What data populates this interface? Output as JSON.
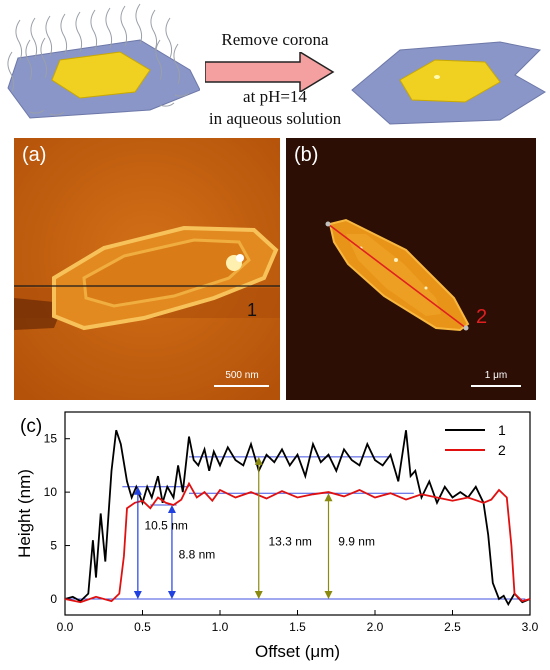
{
  "schematic": {
    "line1": "Remove corona",
    "line2": "at pH=14",
    "line3": "in aqueous solution"
  },
  "panel_a": {
    "label": "(a)",
    "line_label": "1",
    "scale_bar": "500 nm",
    "colors": {
      "background": "#c96a10",
      "flake": "#f2b030",
      "line": "#1a1a1a"
    }
  },
  "panel_b": {
    "label": "(b)",
    "line_label": "2",
    "scale_bar": "1 μm",
    "colors": {
      "background": "#2a0c04",
      "flake": "#f0a020",
      "line": "#e02020"
    }
  },
  "panel_c": {
    "label": "(c)",
    "annotations": [
      "10.5 nm",
      "8.8 nm",
      "13.3 nm",
      "9.9 nm"
    ]
  },
  "chart_data": {
    "type": "line",
    "xlabel": "Offset (μm)",
    "ylabel": "Height (nm)",
    "xlim": [
      0.0,
      3.0
    ],
    "ylim": [
      -1.5,
      17.5
    ],
    "xticks": [
      "0.0",
      "0.5",
      "1.0",
      "1.5",
      "2.0",
      "2.5",
      "3.0"
    ],
    "yticks": [
      "0",
      "5",
      "10",
      "15"
    ],
    "legend_position": "top-right",
    "series": [
      {
        "name": "1",
        "color": "#000000",
        "x": [
          0.0,
          0.05,
          0.1,
          0.15,
          0.18,
          0.2,
          0.23,
          0.26,
          0.3,
          0.33,
          0.36,
          0.4,
          0.43,
          0.46,
          0.5,
          0.53,
          0.56,
          0.6,
          0.63,
          0.66,
          0.7,
          0.73,
          0.76,
          0.8,
          0.83,
          0.86,
          0.9,
          0.93,
          0.96,
          1.0,
          1.05,
          1.1,
          1.15,
          1.2,
          1.25,
          1.3,
          1.35,
          1.4,
          1.45,
          1.5,
          1.55,
          1.6,
          1.65,
          1.7,
          1.75,
          1.8,
          1.85,
          1.9,
          1.95,
          2.0,
          2.05,
          2.1,
          2.15,
          2.2,
          2.23,
          2.26,
          2.3,
          2.35,
          2.4,
          2.45,
          2.5,
          2.55,
          2.6,
          2.65,
          2.7,
          2.73,
          2.76,
          2.8,
          2.83,
          2.86,
          2.9,
          2.95,
          3.0
        ],
        "y": [
          0.0,
          0.2,
          -0.2,
          0.5,
          5.5,
          2.0,
          8.0,
          3.5,
          12.0,
          15.8,
          14.5,
          11.0,
          9.5,
          10.5,
          9.0,
          10.5,
          9.5,
          11.5,
          9.0,
          10.5,
          9.5,
          12.5,
          10.0,
          15.2,
          13.0,
          12.5,
          14.0,
          12.0,
          13.8,
          12.5,
          14.2,
          13.0,
          12.5,
          14.5,
          12.0,
          13.5,
          12.8,
          14.0,
          12.5,
          13.5,
          11.5,
          14.5,
          12.8,
          13.5,
          12.0,
          14.0,
          13.0,
          12.5,
          14.5,
          13.0,
          12.5,
          13.5,
          11.0,
          15.8,
          11.5,
          12.0,
          9.5,
          11.0,
          9.0,
          10.5,
          9.5,
          10.0,
          9.5,
          10.5,
          9.0,
          6.0,
          1.5,
          0.0,
          0.3,
          -0.5,
          0.5,
          -0.3,
          0.0
        ]
      },
      {
        "name": "2",
        "color": "#e01010",
        "x": [
          0.0,
          0.1,
          0.2,
          0.3,
          0.35,
          0.38,
          0.4,
          0.45,
          0.5,
          0.55,
          0.6,
          0.65,
          0.7,
          0.75,
          0.8,
          0.85,
          0.9,
          0.95,
          1.0,
          1.1,
          1.2,
          1.3,
          1.4,
          1.5,
          1.6,
          1.7,
          1.8,
          1.9,
          2.0,
          2.1,
          2.2,
          2.3,
          2.4,
          2.5,
          2.6,
          2.7,
          2.75,
          2.8,
          2.85,
          2.88,
          2.9,
          2.95,
          3.0
        ],
        "y": [
          0.0,
          -0.3,
          0.2,
          -0.2,
          0.5,
          4.0,
          8.5,
          9.0,
          9.2,
          8.5,
          9.5,
          9.0,
          8.8,
          9.3,
          10.8,
          9.5,
          10.0,
          9.2,
          10.2,
          9.5,
          10.0,
          9.4,
          10.1,
          9.5,
          9.8,
          10.0,
          9.6,
          10.2,
          9.5,
          9.9,
          9.3,
          9.8,
          9.5,
          9.2,
          9.5,
          9.0,
          9.3,
          10.2,
          9.5,
          5.0,
          0.5,
          -0.2,
          0.0
        ]
      }
    ],
    "reference_levels": [
      0.0,
      10.5,
      8.8,
      13.3,
      9.9
    ]
  }
}
